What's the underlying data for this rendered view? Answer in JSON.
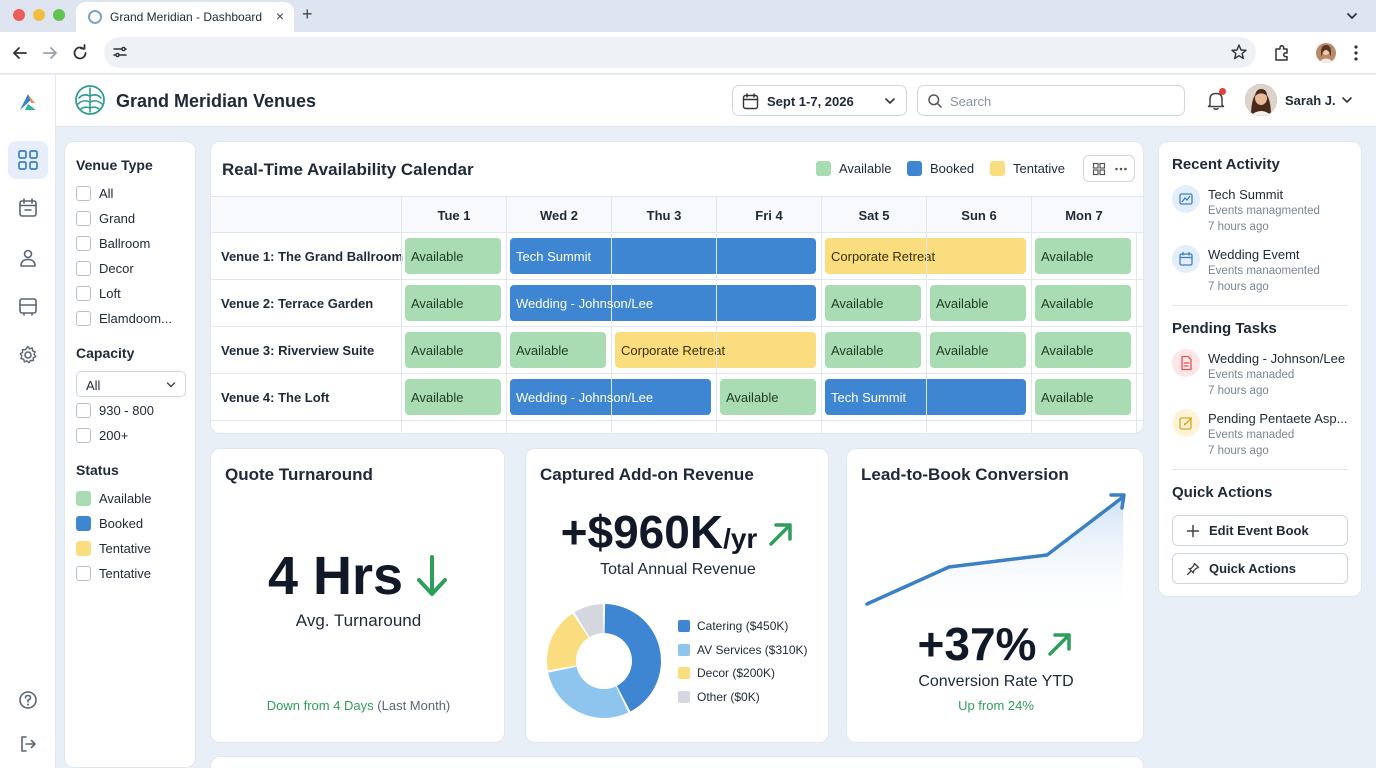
{
  "browser": {
    "tab_title": "Grand Meridian - Dashboard",
    "tab_close": "×",
    "new_tab": "+"
  },
  "header": {
    "brand": "Grand Meridian Venues",
    "date_range": "Sept 1-7, 2026",
    "search_placeholder": "Search",
    "user_name": "Sarah J."
  },
  "filters": {
    "venue_type": {
      "heading": "Venue Type",
      "options": [
        "All",
        "Grand",
        "Ballroom",
        "Decor",
        "Loft",
        "Elamdoom..."
      ]
    },
    "capacity": {
      "heading": "Capacity",
      "select_value": "All",
      "options": [
        "930 - 800",
        "200+"
      ]
    },
    "status": {
      "heading": "Status",
      "options": [
        "Available",
        "Booked",
        "Tentative",
        "Tentative"
      ]
    }
  },
  "calendar": {
    "title": "Real-Time Availability Calendar",
    "legend": [
      "Available",
      "Booked",
      "Tentative"
    ],
    "days": [
      "Tue 1",
      "Wed 2",
      "Thu 3",
      "Fri 4",
      "Sat 5",
      "Sun 6",
      "Mon 7"
    ],
    "venues": [
      {
        "name": "Venue 1: The Grand Ballroom",
        "blocks": [
          {
            "label": "Available",
            "status": "available",
            "start": 0,
            "span": 1
          },
          {
            "label": "Tech Summit",
            "status": "booked",
            "start": 1,
            "span": 3
          },
          {
            "label": "Corporate Retreat",
            "status": "tentative",
            "start": 4,
            "span": 2
          },
          {
            "label": "Available",
            "status": "available",
            "start": 6,
            "span": 1
          }
        ]
      },
      {
        "name": "Venue 2: Terrace Garden",
        "blocks": [
          {
            "label": "Available",
            "status": "available",
            "start": 0,
            "span": 1
          },
          {
            "label": "Wedding - Johnson/Lee",
            "status": "booked",
            "start": 1,
            "span": 3
          },
          {
            "label": "Available",
            "status": "available",
            "start": 4,
            "span": 1
          },
          {
            "label": "Available",
            "status": "available",
            "start": 5,
            "span": 1
          },
          {
            "label": "Available",
            "status": "available",
            "start": 6,
            "span": 1
          }
        ]
      },
      {
        "name": "Venue 3: Riverview Suite",
        "blocks": [
          {
            "label": "Available",
            "status": "available",
            "start": 0,
            "span": 1
          },
          {
            "label": "Available",
            "status": "available",
            "start": 1,
            "span": 1
          },
          {
            "label": "Corporate Retreat",
            "status": "tentative",
            "start": 2,
            "span": 2
          },
          {
            "label": "Available",
            "status": "available",
            "start": 4,
            "span": 1
          },
          {
            "label": "Available",
            "status": "available",
            "start": 5,
            "span": 1
          },
          {
            "label": "Available",
            "status": "available",
            "start": 6,
            "span": 1
          }
        ]
      },
      {
        "name": "Venue 4: The Loft",
        "blocks": [
          {
            "label": "Available",
            "status": "available",
            "start": 0,
            "span": 1
          },
          {
            "label": "Wedding - Johnson/Lee",
            "status": "booked",
            "start": 1,
            "span": 2
          },
          {
            "label": "Available",
            "status": "available",
            "start": 3,
            "span": 1
          },
          {
            "label": "Tech Summit",
            "status": "booked",
            "start": 4,
            "span": 2
          },
          {
            "label": "Available",
            "status": "available",
            "start": 6,
            "span": 1
          }
        ]
      }
    ]
  },
  "kpis": {
    "quote": {
      "title": "Quote Turnaround",
      "value": "4 Hrs",
      "subtitle": "Avg. Turnaround",
      "note_highlight": "Down from 4 Days",
      "note_rest": "(Last Month)"
    },
    "revenue": {
      "title": "Captured Add-on Revenue",
      "value": "+$960K",
      "unit": "/yr",
      "subtitle": "Total Annual Revenue",
      "breakdown": [
        {
          "label": "Catering ($450K)",
          "value": 450,
          "color": "#3f86d2"
        },
        {
          "label": "AV Services ($310K)",
          "value": 310,
          "color": "#8ec5ef"
        },
        {
          "label": "Decor ($200K)",
          "value": 200,
          "color": "#f9dd7e"
        },
        {
          "label": "Other ($0K)",
          "value": 0,
          "color": "#d4d8de"
        }
      ]
    },
    "conversion": {
      "title": "Lead-to-Book Conversion",
      "value": "+37%",
      "subtitle": "Conversion Rate YTD",
      "note": "Up from 24%"
    }
  },
  "activity": {
    "heading": "Recent Activity",
    "items": [
      {
        "title": "Tech Summit",
        "subtitle": "Events managmented",
        "time": "7 hours ago"
      },
      {
        "title": "Wedding Evemt",
        "subtitle": "Events manaomented",
        "time": "7 hours ago"
      }
    ]
  },
  "tasks": {
    "heading": "Pending Tasks",
    "items": [
      {
        "title": "Wedding - Johnson/Lee",
        "subtitle": "Events manaded",
        "time": "7 hours ago"
      },
      {
        "title": "Pending Pentaete Asp...",
        "subtitle": "Events manaded",
        "time": "7 hours ago"
      }
    ]
  },
  "quick_actions": {
    "heading": "Quick Actions",
    "buttons": [
      "Edit Event Book",
      "Quick Actions"
    ]
  },
  "colors": {
    "available": "#a9dcb2",
    "booked": "#3f86d2",
    "tentative": "#f9dd7e",
    "positive": "#2f9e5b",
    "accent": "#3b7fc4"
  }
}
